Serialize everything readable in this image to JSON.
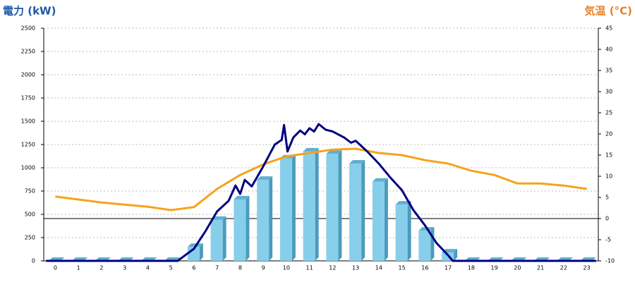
{
  "chart_data": {
    "type": "bar",
    "title": "電力 (kW)",
    "y2_title": "気温 (°C)",
    "categories": [
      "0",
      "1",
      "2",
      "3",
      "4",
      "5",
      "6",
      "7",
      "8",
      "9",
      "10",
      "11",
      "12",
      "13",
      "14",
      "15",
      "16",
      "17",
      "18",
      "19",
      "20",
      "21",
      "22",
      "23"
    ],
    "series": [
      {
        "type": "bar",
        "color": "#87ceeb",
        "values": [
          0,
          0,
          0,
          0,
          0,
          0,
          150,
          440,
          660,
          870,
          1100,
          1175,
          1150,
          1045,
          850,
          605,
          325,
          90,
          0,
          0,
          0,
          0,
          0,
          0
        ]
      },
      {
        "type": "line",
        "color": "#000080",
        "x": [
          -0.4,
          5.3,
          6,
          6.5,
          7,
          7.5,
          7.8,
          8,
          8.2,
          8.5,
          9,
          9.5,
          9.8,
          9.9,
          10.05,
          10.3,
          10.6,
          10.8,
          11,
          11.2,
          11.4,
          11.7,
          12,
          12.5,
          12.8,
          13,
          13.5,
          14,
          14.5,
          15,
          15.5,
          16,
          16.5,
          17,
          17.2,
          23.4
        ],
        "values": [
          0,
          0,
          130,
          320,
          530,
          645,
          810,
          720,
          870,
          800,
          1015,
          1250,
          1300,
          1460,
          1175,
          1325,
          1400,
          1360,
          1425,
          1390,
          1470,
          1410,
          1390,
          1325,
          1270,
          1290,
          1175,
          1045,
          895,
          760,
          545,
          380,
          190,
          60,
          0,
          0
        ]
      },
      {
        "type": "line",
        "axis": "y2",
        "color": "#f5a31a",
        "values": [
          5.2,
          4.5,
          3.8,
          3.3,
          2.8,
          2,
          2.7,
          7,
          10.3,
          12.8,
          14.7,
          15.5,
          16.3,
          16.5,
          15.5,
          15,
          13.8,
          13,
          11.3,
          10.3,
          8.3,
          8.3,
          7.8,
          7
        ]
      }
    ],
    "ylim": [
      0,
      2500
    ],
    "yticks": [
      0,
      250,
      500,
      750,
      1000,
      1250,
      1500,
      1750,
      2000,
      2250,
      2500
    ],
    "y2lim": [
      -10,
      45
    ],
    "y2ticks": [
      -10,
      -5,
      0,
      5,
      10,
      15,
      20,
      25,
      30,
      35,
      40,
      45
    ],
    "y2_reference_line": 0,
    "grid": true
  }
}
